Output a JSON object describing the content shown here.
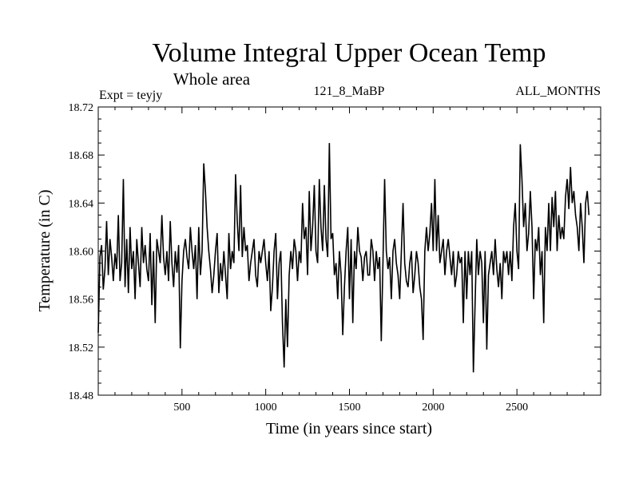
{
  "chart_data": {
    "type": "line",
    "title": "Volume Integral Upper Ocean Temp",
    "subtitle": "Whole area",
    "experiment": "Expt = teyjy",
    "run_label": "121_8_MaBP",
    "months_label": "ALL_MONTHS",
    "xlabel": "Time (in years since start)",
    "ylabel": "Temperature (in C)",
    "xlim": [
      0,
      3000
    ],
    "ylim": [
      18.48,
      18.72
    ],
    "xticks": [
      500,
      1000,
      1500,
      2000,
      2500
    ],
    "xtick_labels": [
      "500",
      "1000",
      "1500",
      "2000",
      "2500"
    ],
    "yticks": [
      18.48,
      18.52,
      18.56,
      18.6,
      18.64,
      18.68,
      18.72
    ],
    "ytick_labels": [
      "18.48",
      "18.52",
      "18.56",
      "18.60",
      "18.64",
      "18.68",
      "18.72"
    ],
    "grid": false,
    "series": [
      {
        "name": "Volume integral upper ocean temperature",
        "x_step": 10,
        "values": [
          18.532,
          18.595,
          18.605,
          18.568,
          18.585,
          18.625,
          18.58,
          18.61,
          18.595,
          18.575,
          18.598,
          18.585,
          18.63,
          18.575,
          18.59,
          18.66,
          18.57,
          18.61,
          18.565,
          18.62,
          18.585,
          18.6,
          18.56,
          18.61,
          18.59,
          18.57,
          18.62,
          18.59,
          18.605,
          18.585,
          18.575,
          18.615,
          18.555,
          18.6,
          18.54,
          18.61,
          18.6,
          18.59,
          18.63,
          18.595,
          18.58,
          18.6,
          18.575,
          18.625,
          18.59,
          18.57,
          18.6,
          18.582,
          18.605,
          18.519,
          18.575,
          18.6,
          18.61,
          18.595,
          18.585,
          18.62,
          18.6,
          18.585,
          18.605,
          18.56,
          18.62,
          18.58,
          18.6,
          18.673,
          18.65,
          18.62,
          18.6,
          18.585,
          18.565,
          18.58,
          18.6,
          18.615,
          18.565,
          18.59,
          18.575,
          18.6,
          18.58,
          18.56,
          18.615,
          18.585,
          18.6,
          18.59,
          18.664,
          18.625,
          18.6,
          18.655,
          18.595,
          18.62,
          18.6,
          18.605,
          18.575,
          18.59,
          18.6,
          18.61,
          18.58,
          18.57,
          18.6,
          18.59,
          18.6,
          18.61,
          18.59,
          18.575,
          18.6,
          18.55,
          18.57,
          18.6,
          18.615,
          18.56,
          18.59,
          18.6,
          18.54,
          18.503,
          18.56,
          18.52,
          18.58,
          18.6,
          18.585,
          18.61,
          18.6,
          18.575,
          18.6,
          18.59,
          18.64,
          18.61,
          18.62,
          18.58,
          18.65,
          18.6,
          18.62,
          18.655,
          18.6,
          18.59,
          18.66,
          18.62,
          18.6,
          18.655,
          18.61,
          18.595,
          18.69,
          18.61,
          18.615,
          18.58,
          18.59,
          18.56,
          18.6,
          18.58,
          18.53,
          18.57,
          18.6,
          18.62,
          18.56,
          18.61,
          18.54,
          18.6,
          18.585,
          18.62,
          18.6,
          18.595,
          18.575,
          18.595,
          18.6,
          18.58,
          18.58,
          18.61,
          18.6,
          18.575,
          18.6,
          18.585,
          18.595,
          18.525,
          18.59,
          18.66,
          18.6,
          18.585,
          18.595,
          18.56,
          18.6,
          18.61,
          18.59,
          18.58,
          18.56,
          18.6,
          18.64,
          18.59,
          18.575,
          18.57,
          18.59,
          18.6,
          18.565,
          18.58,
          18.6,
          18.59,
          18.57,
          18.56,
          18.526,
          18.6,
          18.62,
          18.6,
          18.615,
          18.64,
          18.6,
          18.66,
          18.6,
          18.63,
          18.59,
          18.6,
          18.61,
          18.58,
          18.6,
          18.61,
          18.595,
          18.58,
          18.6,
          18.57,
          18.58,
          18.6,
          18.59,
          18.595,
          18.54,
          18.6,
          18.56,
          18.6,
          18.58,
          18.6,
          18.499,
          18.555,
          18.61,
          18.58,
          18.6,
          18.59,
          18.54,
          18.6,
          18.518,
          18.58,
          18.59,
          18.6,
          18.58,
          18.61,
          18.585,
          18.57,
          18.59,
          18.56,
          18.6,
          18.59,
          18.6,
          18.58,
          18.6,
          18.575,
          18.62,
          18.64,
          18.6,
          18.585,
          18.689,
          18.66,
          18.62,
          18.64,
          18.6,
          18.615,
          18.65,
          18.62,
          18.56,
          18.61,
          18.6,
          18.62,
          18.58,
          18.6,
          18.54,
          18.62,
          18.6,
          18.64,
          18.6,
          18.645,
          18.62,
          18.65,
          18.6,
          18.63,
          18.61,
          18.62,
          18.61,
          18.645,
          18.66,
          18.635,
          18.67,
          18.64,
          18.65,
          18.63,
          18.62,
          18.6,
          18.64,
          18.62,
          18.59,
          18.64,
          18.65,
          18.63
        ]
      }
    ]
  }
}
